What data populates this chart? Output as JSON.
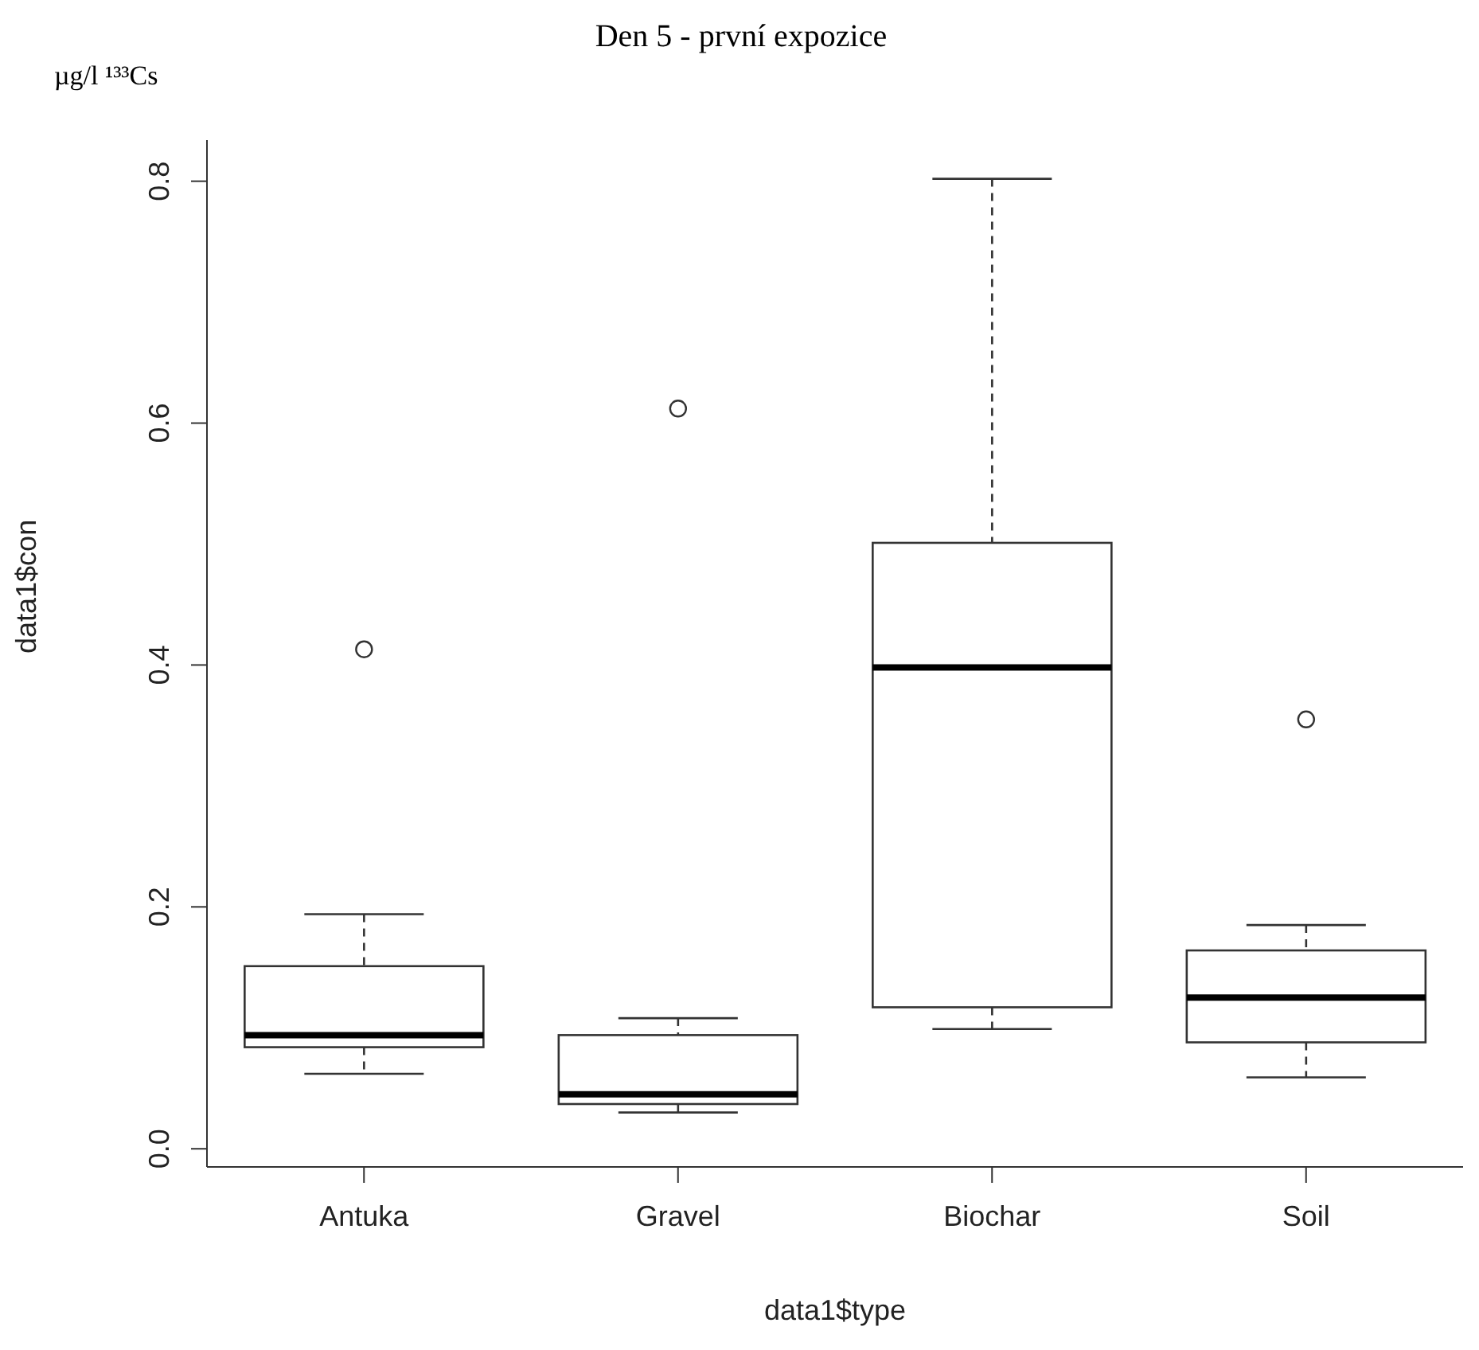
{
  "chart_data": {
    "type": "box",
    "title": "Den 5 - první expozice",
    "xlabel": "data1$type",
    "ylabel": "data1$con",
    "annotations": [
      "µg/l ¹³³Cs"
    ],
    "categories": [
      "Antuka",
      "Gravel",
      "Biochar",
      "Soil"
    ],
    "boxes": [
      {
        "low": 0.062,
        "q1": 0.084,
        "median": 0.094,
        "q3": 0.151,
        "high": 0.194,
        "outliers": [
          0.413
        ]
      },
      {
        "low": 0.03,
        "q1": 0.037,
        "median": 0.045,
        "q3": 0.094,
        "high": 0.108,
        "outliers": [
          0.612
        ]
      },
      {
        "low": 0.099,
        "q1": 0.117,
        "median": 0.398,
        "q3": 0.501,
        "high": 0.802
      },
      {
        "low": 0.059,
        "q1": 0.088,
        "median": 0.125,
        "q3": 0.164,
        "high": 0.185,
        "outliers": [
          0.355
        ]
      }
    ],
    "ylim": [
      -0.015,
      0.834
    ],
    "yticks": [
      {
        "value": 0,
        "label": "0.0"
      },
      {
        "value": 0.2,
        "label": "0.2"
      },
      {
        "value": 0.4,
        "label": "0.4"
      },
      {
        "value": 0.6,
        "label": "0.6"
      },
      {
        "value": 0.8,
        "label": "0.8"
      }
    ],
    "grid": false,
    "legend": false
  }
}
